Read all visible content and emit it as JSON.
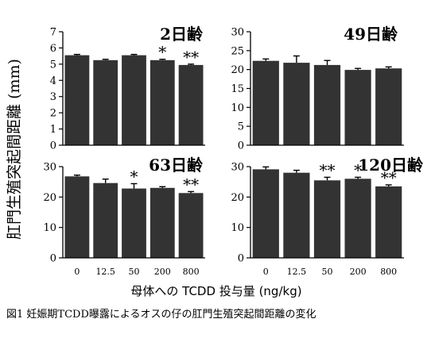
{
  "figure": {
    "ylabel": "肛門生殖突起間距離 (mm)",
    "xlabel": "母体への TCDD 投与量 (ng/kg)",
    "caption": "図1 妊娠期TCDD曝露によるオスの仔の肛門生殖突起間距離の変化"
  },
  "colors": {
    "bar": "#333333",
    "axis": "#000000"
  },
  "chart_data": [
    {
      "type": "bar",
      "title": "2日齢",
      "categories": [
        "0",
        "12.5",
        "50",
        "200",
        "800"
      ],
      "values": [
        5.55,
        5.25,
        5.55,
        5.25,
        4.95
      ],
      "errors": [
        0.05,
        0.05,
        0.05,
        0.05,
        0.05
      ],
      "significance": [
        "",
        "",
        "",
        "*",
        "**"
      ],
      "ylim": [
        0,
        7
      ],
      "yticks": [
        "0",
        "1",
        "2",
        "3",
        "4",
        "5",
        "6",
        "7"
      ],
      "show_x_ticks": false
    },
    {
      "type": "bar",
      "title": "49日齢",
      "categories": [
        "0",
        "12.5",
        "50",
        "200",
        "800"
      ],
      "values": [
        22.3,
        21.8,
        21.2,
        19.9,
        20.3
      ],
      "errors": [
        0.5,
        1.8,
        1.2,
        0.4,
        0.4
      ],
      "significance": [
        "",
        "",
        "",
        "",
        ""
      ],
      "ylim": [
        0,
        30
      ],
      "yticks": [
        "0",
        "5",
        "10",
        "15",
        "20",
        "25",
        "30"
      ],
      "show_x_ticks": false
    },
    {
      "type": "bar",
      "title": "63日齢",
      "categories": [
        "0",
        "12.5",
        "50",
        "200",
        "800"
      ],
      "values": [
        26.8,
        24.6,
        22.8,
        23.0,
        21.3
      ],
      "errors": [
        0.4,
        1.3,
        1.6,
        0.4,
        0.5
      ],
      "significance": [
        "",
        "",
        "*",
        "",
        "**"
      ],
      "ylim": [
        0,
        30
      ],
      "yticks": [
        "0",
        "10",
        "20",
        "30"
      ],
      "show_x_ticks": true
    },
    {
      "type": "bar",
      "title": "120日齢",
      "categories": [
        "0",
        "12.5",
        "50",
        "200",
        "800"
      ],
      "values": [
        29.1,
        28.0,
        25.5,
        26.0,
        23.5
      ],
      "errors": [
        0.8,
        0.8,
        1.0,
        0.5,
        0.5
      ],
      "significance": [
        "",
        "",
        "**",
        "*",
        "**"
      ],
      "ylim": [
        0,
        30
      ],
      "yticks": [
        "0",
        "10",
        "20",
        "30"
      ],
      "show_x_ticks": true
    }
  ]
}
